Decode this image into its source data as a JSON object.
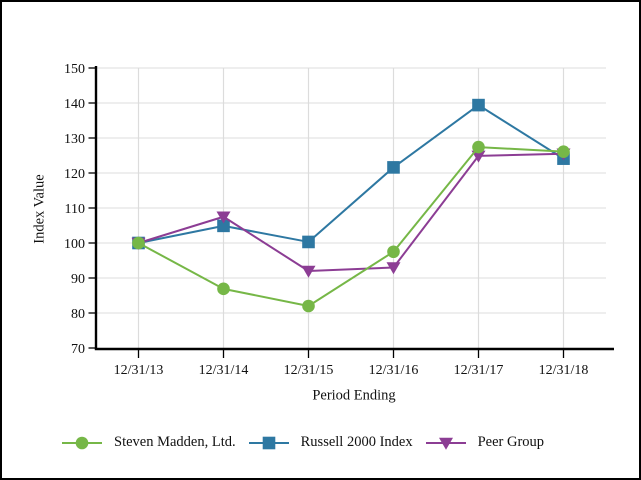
{
  "window": {
    "background": "#ffffff",
    "frame_border_color": "#000000"
  },
  "styles": {
    "grid_color": "#dcdcdc",
    "axis_color": "#000000",
    "text_color": "#111111"
  },
  "chart_data": {
    "type": "line",
    "title": "",
    "xlabel": "Period Ending",
    "ylabel": "Index Value",
    "categories": [
      "12/31/13",
      "12/31/14",
      "12/31/15",
      "12/31/16",
      "12/31/17",
      "12/31/18"
    ],
    "y_ticks": [
      70,
      80,
      90,
      100,
      110,
      120,
      130,
      140,
      150
    ],
    "ylim": [
      70,
      150
    ],
    "grid": true,
    "legend_position": "bottom",
    "series": [
      {
        "name": "Steven Madden, Ltd.",
        "marker": "circle",
        "color": "#76b747",
        "values": [
          100,
          86.9,
          82.0,
          97.5,
          127.4,
          126.1
        ]
      },
      {
        "name": "Russell 2000 Index",
        "marker": "square",
        "color": "#2e78a2",
        "values": [
          100,
          104.9,
          100.3,
          121.6,
          139.4,
          124.1
        ]
      },
      {
        "name": "Peer Group",
        "marker": "triangle-down",
        "color": "#8c3d94",
        "values": [
          100,
          107.5,
          92.0,
          93.0,
          124.9,
          125.5
        ]
      }
    ]
  }
}
